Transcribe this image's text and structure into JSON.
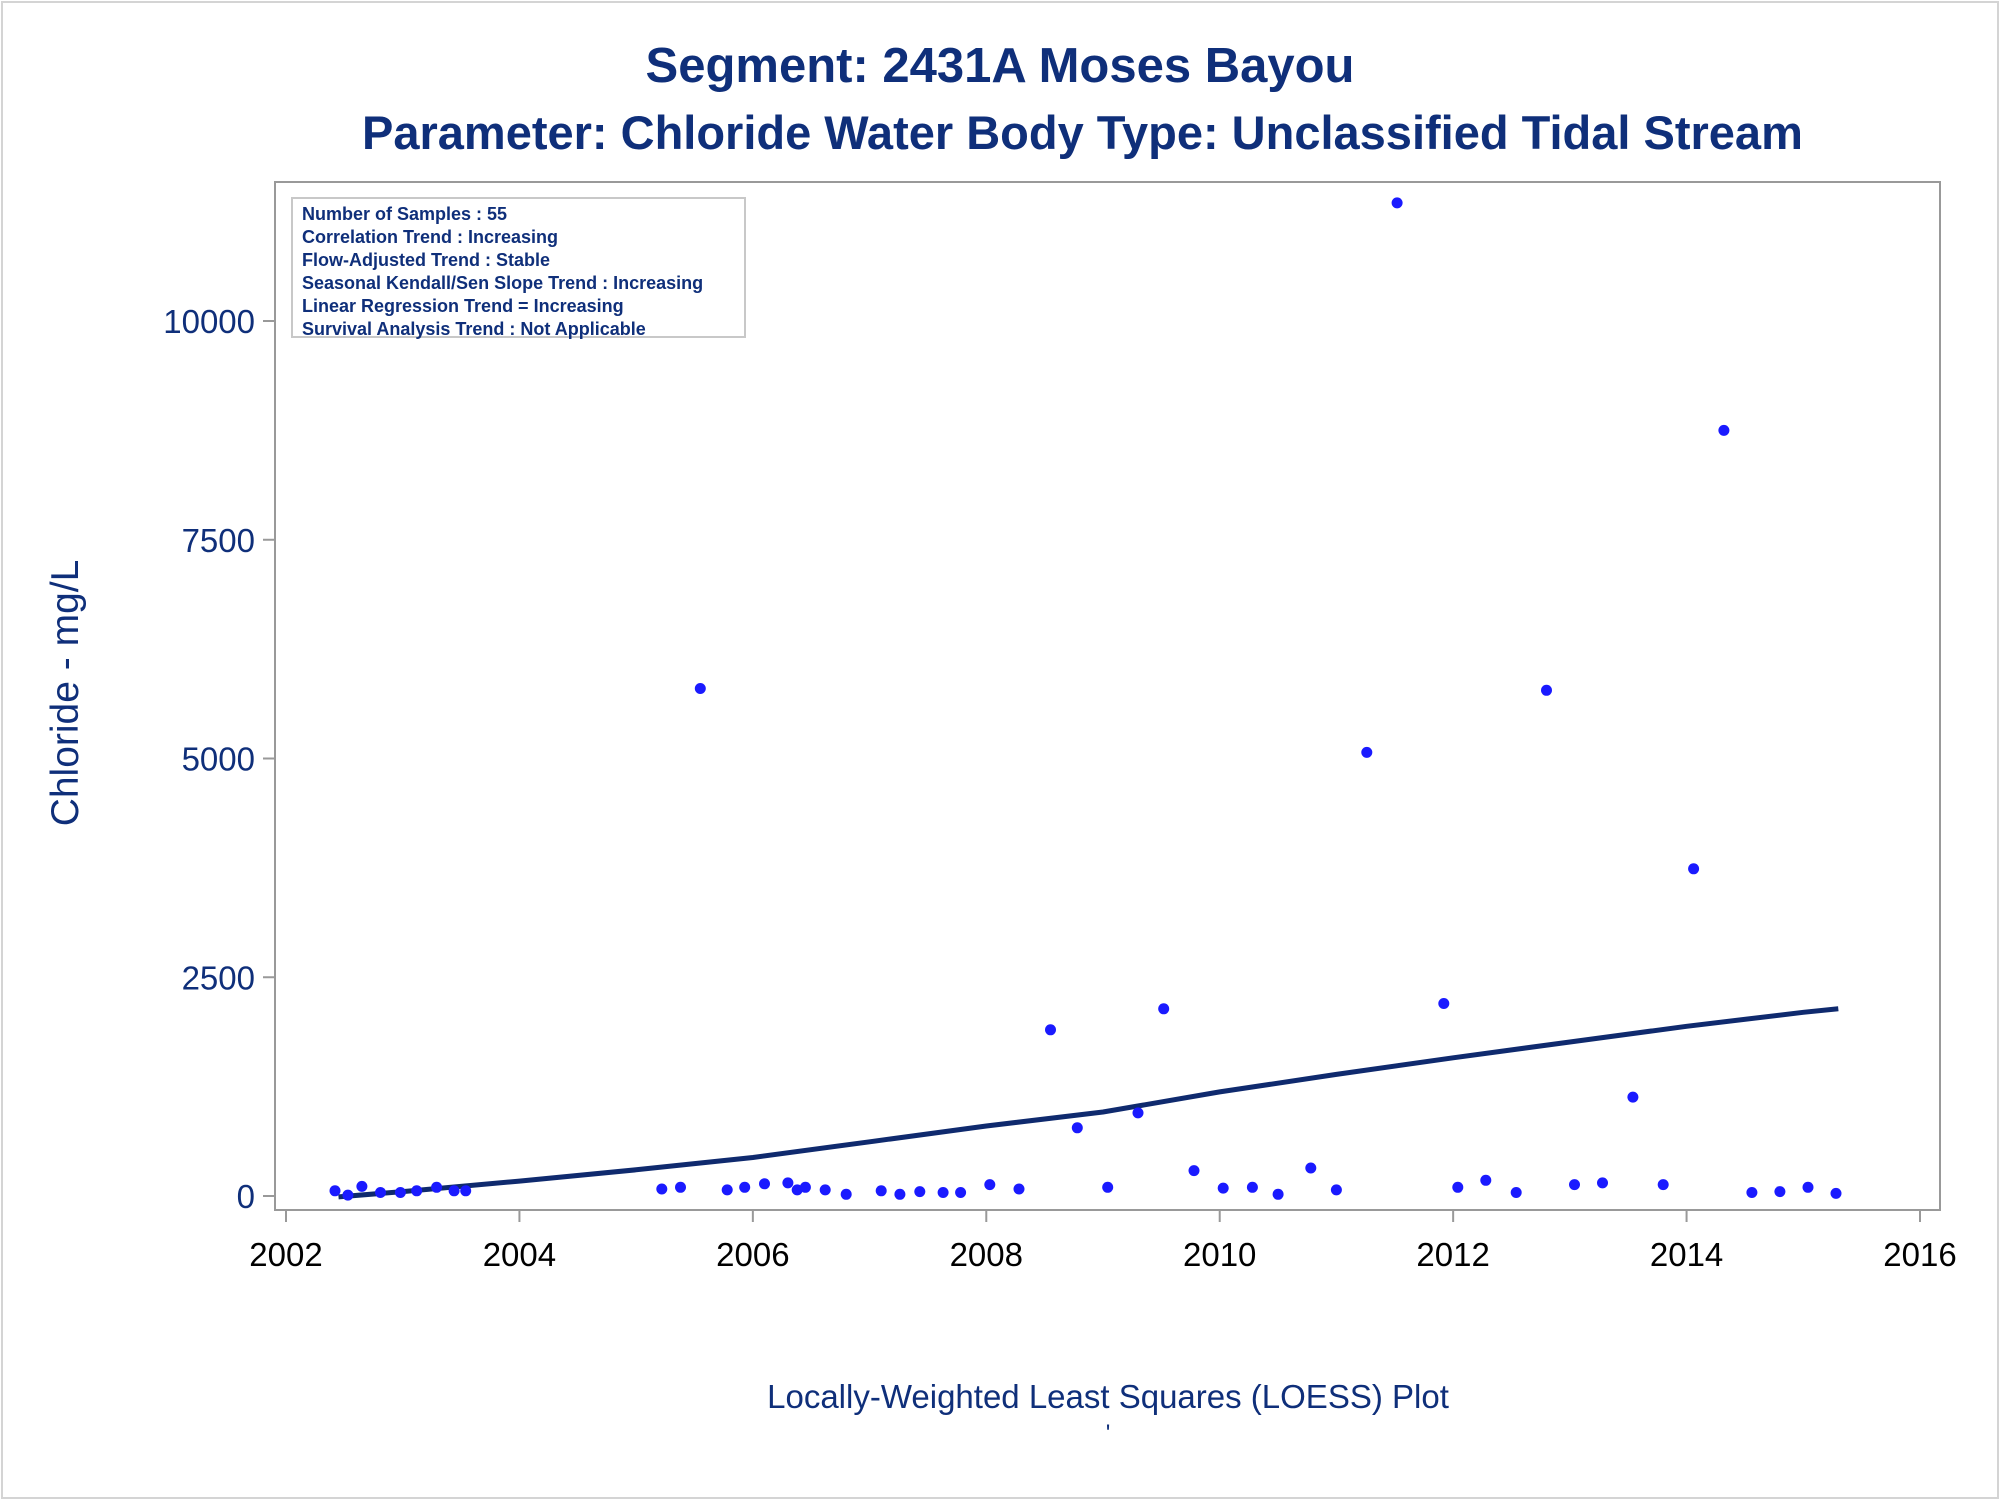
{
  "chart_data": {
    "type": "scatter",
    "title": "Segment: 2431A  Moses Bayou",
    "subtitle": "Parameter: Chloride   Water Body Type: Unclassified Tidal Stream",
    "ylabel": "Chloride - mg/L",
    "xlabel": "",
    "footnote": "Locally-Weighted Least Squares (LOESS) Plot",
    "footmark": "'",
    "xlim": [
      2002,
      2016
    ],
    "ylim": [
      0,
      11500
    ],
    "xticks": [
      2002,
      2004,
      2006,
      2008,
      2010,
      2012,
      2014,
      2016
    ],
    "yticks": [
      0,
      2500,
      5000,
      7500,
      10000
    ],
    "grid": false,
    "stats": [
      "Number of Samples : 55",
      "Correlation Trend : Increasing",
      "Flow-Adjusted Trend : Stable",
      "Seasonal Kendall/Sen Slope Trend : Increasing",
      "Linear Regression Trend = Increasing",
      "Survival Analysis Trend : Not Applicable"
    ],
    "points": [
      {
        "x": 2002.42,
        "y": 60
      },
      {
        "x": 2002.53,
        "y": 10
      },
      {
        "x": 2002.65,
        "y": 110
      },
      {
        "x": 2002.81,
        "y": 40
      },
      {
        "x": 2002.98,
        "y": 40
      },
      {
        "x": 2003.12,
        "y": 60
      },
      {
        "x": 2003.29,
        "y": 100
      },
      {
        "x": 2003.44,
        "y": 60
      },
      {
        "x": 2003.54,
        "y": 60
      },
      {
        "x": 2005.22,
        "y": 80
      },
      {
        "x": 2005.38,
        "y": 100
      },
      {
        "x": 2005.55,
        "y": 5800
      },
      {
        "x": 2005.78,
        "y": 70
      },
      {
        "x": 2005.93,
        "y": 100
      },
      {
        "x": 2006.1,
        "y": 140
      },
      {
        "x": 2006.3,
        "y": 150
      },
      {
        "x": 2006.38,
        "y": 70
      },
      {
        "x": 2006.45,
        "y": 100
      },
      {
        "x": 2006.62,
        "y": 70
      },
      {
        "x": 2006.8,
        "y": 20
      },
      {
        "x": 2007.1,
        "y": 60
      },
      {
        "x": 2007.26,
        "y": 20
      },
      {
        "x": 2007.43,
        "y": 50
      },
      {
        "x": 2007.63,
        "y": 40
      },
      {
        "x": 2007.78,
        "y": 40
      },
      {
        "x": 2008.03,
        "y": 130
      },
      {
        "x": 2008.28,
        "y": 80
      },
      {
        "x": 2008.55,
        "y": 1900
      },
      {
        "x": 2008.78,
        "y": 780
      },
      {
        "x": 2009.04,
        "y": 100
      },
      {
        "x": 2009.3,
        "y": 950
      },
      {
        "x": 2009.52,
        "y": 2140
      },
      {
        "x": 2009.78,
        "y": 290
      },
      {
        "x": 2010.03,
        "y": 90
      },
      {
        "x": 2010.28,
        "y": 100
      },
      {
        "x": 2010.5,
        "y": 20
      },
      {
        "x": 2010.78,
        "y": 320
      },
      {
        "x": 2011.0,
        "y": 70
      },
      {
        "x": 2011.26,
        "y": 5070
      },
      {
        "x": 2011.52,
        "y": 11350
      },
      {
        "x": 2011.92,
        "y": 2200
      },
      {
        "x": 2012.04,
        "y": 100
      },
      {
        "x": 2012.28,
        "y": 180
      },
      {
        "x": 2012.54,
        "y": 40
      },
      {
        "x": 2012.8,
        "y": 5780
      },
      {
        "x": 2013.04,
        "y": 130
      },
      {
        "x": 2013.28,
        "y": 150
      },
      {
        "x": 2013.54,
        "y": 1130
      },
      {
        "x": 2013.8,
        "y": 130
      },
      {
        "x": 2014.06,
        "y": 3740
      },
      {
        "x": 2014.32,
        "y": 8750
      },
      {
        "x": 2014.56,
        "y": 40
      },
      {
        "x": 2014.8,
        "y": 50
      },
      {
        "x": 2015.04,
        "y": 100
      },
      {
        "x": 2015.28,
        "y": 30
      }
    ],
    "loess": [
      {
        "x": 2002.45,
        "y": -10
      },
      {
        "x": 2003.0,
        "y": 50
      },
      {
        "x": 2004.0,
        "y": 170
      },
      {
        "x": 2005.0,
        "y": 300
      },
      {
        "x": 2006.0,
        "y": 440
      },
      {
        "x": 2007.0,
        "y": 620
      },
      {
        "x": 2008.0,
        "y": 800
      },
      {
        "x": 2009.0,
        "y": 960
      },
      {
        "x": 2010.0,
        "y": 1190
      },
      {
        "x": 2011.0,
        "y": 1390
      },
      {
        "x": 2012.0,
        "y": 1580
      },
      {
        "x": 2013.0,
        "y": 1760
      },
      {
        "x": 2014.0,
        "y": 1940
      },
      {
        "x": 2015.0,
        "y": 2100
      },
      {
        "x": 2015.3,
        "y": 2140
      }
    ],
    "colors": {
      "points": "#1a1aff",
      "line": "#0f2a6e",
      "text": "#0f2f7a",
      "axis": "#999999"
    }
  }
}
